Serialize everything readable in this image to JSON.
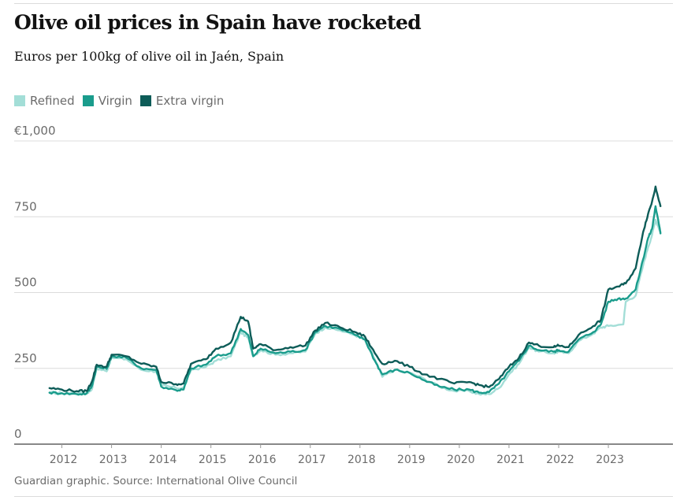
{
  "header": {
    "title": "Olive oil prices in Spain have rocketed",
    "subtitle": "Euros per 100kg of olive oil in Jaén, Spain"
  },
  "legend": [
    {
      "label": "Refined",
      "color": "#a3ded7"
    },
    {
      "label": "Virgin",
      "color": "#1a9c8c"
    },
    {
      "label": "Extra virgin",
      "color": "#0d5c58"
    }
  ],
  "footer": {
    "source": "Guardian graphic. Source: International Olive Council"
  },
  "chart_data": {
    "type": "line",
    "title": "Olive oil prices in Spain have rocketed",
    "subtitle": "Euros per 100kg of olive oil in Jaén, Spain",
    "xlabel": "",
    "ylabel": "",
    "x_unit": "year",
    "xlim": [
      2011.5,
      2024.3
    ],
    "ylim": [
      0,
      1000
    ],
    "y_ticks": [
      {
        "value": 0,
        "label": "0"
      },
      {
        "value": 250,
        "label": "250"
      },
      {
        "value": 500,
        "label": "500"
      },
      {
        "value": 750,
        "label": "750"
      },
      {
        "value": 1000,
        "label": "€1,000"
      }
    ],
    "x_ticks": [
      {
        "value": 2012,
        "label": "2012"
      },
      {
        "value": 2013,
        "label": "2013"
      },
      {
        "value": 2014,
        "label": "2014"
      },
      {
        "value": 2015,
        "label": "2015"
      },
      {
        "value": 2016,
        "label": "2016"
      },
      {
        "value": 2017,
        "label": "2017"
      },
      {
        "value": 2018,
        "label": "2018"
      },
      {
        "value": 2019,
        "label": "2019"
      },
      {
        "value": 2020,
        "label": "2020"
      },
      {
        "value": 2021,
        "label": "2021"
      },
      {
        "value": 2022,
        "label": "2022"
      },
      {
        "value": 2023,
        "label": "2023"
      }
    ],
    "grid": true,
    "legend_position": "top-left",
    "series": [
      {
        "name": "Refined",
        "color": "#a3ded7",
        "points": [
          [
            2011.75,
            170
          ],
          [
            2012.0,
            168
          ],
          [
            2012.3,
            168
          ],
          [
            2012.5,
            168
          ],
          [
            2012.6,
            180
          ],
          [
            2012.7,
            250
          ],
          [
            2012.9,
            240
          ],
          [
            2013.0,
            285
          ],
          [
            2013.3,
            280
          ],
          [
            2013.6,
            245
          ],
          [
            2013.9,
            240
          ],
          [
            2014.0,
            195
          ],
          [
            2014.3,
            185
          ],
          [
            2014.45,
            185
          ],
          [
            2014.6,
            245
          ],
          [
            2014.9,
            255
          ],
          [
            2015.1,
            275
          ],
          [
            2015.4,
            290
          ],
          [
            2015.6,
            370
          ],
          [
            2015.75,
            350
          ],
          [
            2015.85,
            290
          ],
          [
            2016.0,
            310
          ],
          [
            2016.3,
            295
          ],
          [
            2016.6,
            300
          ],
          [
            2016.9,
            305
          ],
          [
            2017.1,
            365
          ],
          [
            2017.3,
            385
          ],
          [
            2017.6,
            375
          ],
          [
            2017.9,
            360
          ],
          [
            2018.1,
            345
          ],
          [
            2018.3,
            280
          ],
          [
            2018.45,
            222
          ],
          [
            2018.7,
            245
          ],
          [
            2019.0,
            235
          ],
          [
            2019.3,
            215
          ],
          [
            2019.6,
            190
          ],
          [
            2019.9,
            175
          ],
          [
            2020.2,
            175
          ],
          [
            2020.4,
            165
          ],
          [
            2020.6,
            165
          ],
          [
            2020.8,
            185
          ],
          [
            2021.0,
            230
          ],
          [
            2021.2,
            265
          ],
          [
            2021.4,
            320
          ],
          [
            2021.6,
            305
          ],
          [
            2021.9,
            300
          ],
          [
            2022.0,
            305
          ],
          [
            2022.2,
            300
          ],
          [
            2022.4,
            340
          ],
          [
            2022.7,
            365
          ],
          [
            2022.85,
            385
          ],
          [
            2023.0,
            390
          ],
          [
            2023.3,
            395
          ],
          [
            2023.35,
            470
          ],
          [
            2023.55,
            490
          ],
          [
            2023.7,
            590
          ],
          [
            2023.8,
            650
          ],
          [
            2023.88,
            690
          ],
          [
            2023.95,
            740
          ],
          [
            2024.05,
            700
          ]
        ]
      },
      {
        "name": "Virgin",
        "color": "#1a9c8c",
        "points": [
          [
            2011.75,
            170
          ],
          [
            2012.0,
            168
          ],
          [
            2012.3,
            165
          ],
          [
            2012.5,
            167
          ],
          [
            2012.6,
            190
          ],
          [
            2012.7,
            255
          ],
          [
            2012.9,
            248
          ],
          [
            2013.0,
            290
          ],
          [
            2013.3,
            285
          ],
          [
            2013.6,
            250
          ],
          [
            2013.9,
            245
          ],
          [
            2014.0,
            190
          ],
          [
            2014.3,
            178
          ],
          [
            2014.45,
            180
          ],
          [
            2014.6,
            250
          ],
          [
            2014.9,
            262
          ],
          [
            2015.1,
            290
          ],
          [
            2015.4,
            300
          ],
          [
            2015.6,
            380
          ],
          [
            2015.75,
            360
          ],
          [
            2015.85,
            290
          ],
          [
            2016.0,
            315
          ],
          [
            2016.3,
            300
          ],
          [
            2016.6,
            305
          ],
          [
            2016.9,
            310
          ],
          [
            2017.1,
            370
          ],
          [
            2017.3,
            390
          ],
          [
            2017.6,
            380
          ],
          [
            2017.9,
            360
          ],
          [
            2018.1,
            345
          ],
          [
            2018.3,
            275
          ],
          [
            2018.45,
            230
          ],
          [
            2018.7,
            245
          ],
          [
            2019.0,
            235
          ],
          [
            2019.3,
            210
          ],
          [
            2019.6,
            190
          ],
          [
            2019.9,
            180
          ],
          [
            2020.2,
            180
          ],
          [
            2020.4,
            170
          ],
          [
            2020.6,
            172
          ],
          [
            2020.8,
            200
          ],
          [
            2021.0,
            240
          ],
          [
            2021.2,
            275
          ],
          [
            2021.4,
            325
          ],
          [
            2021.6,
            310
          ],
          [
            2021.9,
            305
          ],
          [
            2022.0,
            310
          ],
          [
            2022.2,
            305
          ],
          [
            2022.4,
            345
          ],
          [
            2022.7,
            370
          ],
          [
            2022.85,
            395
          ],
          [
            2023.0,
            470
          ],
          [
            2023.2,
            480
          ],
          [
            2023.35,
            480
          ],
          [
            2023.55,
            510
          ],
          [
            2023.7,
            610
          ],
          [
            2023.8,
            680
          ],
          [
            2023.88,
            710
          ],
          [
            2023.95,
            785
          ],
          [
            2024.05,
            695
          ]
        ]
      },
      {
        "name": "Extra virgin",
        "color": "#0d5c58",
        "points": [
          [
            2011.75,
            185
          ],
          [
            2012.0,
            180
          ],
          [
            2012.3,
            175
          ],
          [
            2012.5,
            175
          ],
          [
            2012.6,
            205
          ],
          [
            2012.7,
            262
          ],
          [
            2012.9,
            255
          ],
          [
            2013.0,
            295
          ],
          [
            2013.3,
            290
          ],
          [
            2013.6,
            265
          ],
          [
            2013.9,
            255
          ],
          [
            2014.0,
            205
          ],
          [
            2014.3,
            198
          ],
          [
            2014.45,
            200
          ],
          [
            2014.6,
            265
          ],
          [
            2014.9,
            280
          ],
          [
            2015.1,
            315
          ],
          [
            2015.4,
            335
          ],
          [
            2015.6,
            420
          ],
          [
            2015.75,
            405
          ],
          [
            2015.85,
            315
          ],
          [
            2016.0,
            330
          ],
          [
            2016.3,
            310
          ],
          [
            2016.6,
            320
          ],
          [
            2016.9,
            325
          ],
          [
            2017.1,
            375
          ],
          [
            2017.3,
            400
          ],
          [
            2017.6,
            385
          ],
          [
            2017.9,
            370
          ],
          [
            2018.1,
            355
          ],
          [
            2018.3,
            300
          ],
          [
            2018.45,
            265
          ],
          [
            2018.7,
            275
          ],
          [
            2019.0,
            255
          ],
          [
            2019.3,
            230
          ],
          [
            2019.6,
            215
          ],
          [
            2019.9,
            200
          ],
          [
            2020.2,
            205
          ],
          [
            2020.4,
            195
          ],
          [
            2020.6,
            188
          ],
          [
            2020.8,
            215
          ],
          [
            2021.0,
            255
          ],
          [
            2021.2,
            285
          ],
          [
            2021.4,
            335
          ],
          [
            2021.6,
            325
          ],
          [
            2021.9,
            320
          ],
          [
            2022.0,
            325
          ],
          [
            2022.2,
            320
          ],
          [
            2022.4,
            360
          ],
          [
            2022.7,
            390
          ],
          [
            2022.85,
            410
          ],
          [
            2023.0,
            510
          ],
          [
            2023.2,
            520
          ],
          [
            2023.35,
            530
          ],
          [
            2023.55,
            580
          ],
          [
            2023.7,
            700
          ],
          [
            2023.8,
            760
          ],
          [
            2023.88,
            800
          ],
          [
            2023.95,
            850
          ],
          [
            2024.05,
            785
          ]
        ]
      }
    ]
  }
}
